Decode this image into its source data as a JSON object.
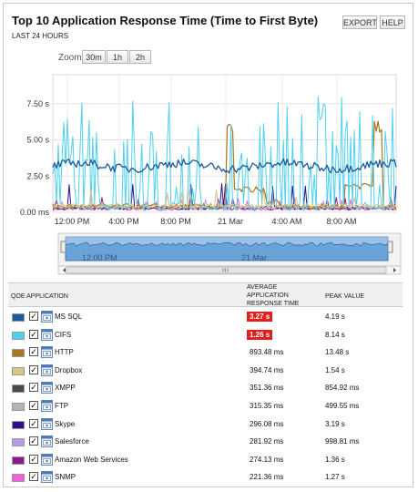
{
  "header": {
    "title": "Top 10 Application Response Time (Time to First Byte)",
    "subtitle": "LAST 24 HOURS",
    "export_label": "EXPORT",
    "help_label": "HELP"
  },
  "zoom": {
    "label": "Zoom",
    "options": [
      "30m",
      "1h",
      "2h"
    ]
  },
  "chart_data": {
    "type": "line",
    "y_ticks": [
      "7.50 s",
      "5.00 s",
      "2.50 s",
      "0.00 ms"
    ],
    "y_values": [
      7.5,
      5.0,
      2.5,
      0
    ],
    "ylim": [
      0,
      9.5
    ],
    "x_ticks": [
      "12:00 PM",
      "4:00 PM",
      "8:00 PM",
      "21 Mar",
      "4:00 AM",
      "8:00 AM"
    ],
    "grid": true,
    "series": [
      {
        "name": "MS SQL",
        "color": "#1a5a9c",
        "avg": 3.27,
        "peak": 4.19
      },
      {
        "name": "CIFS",
        "color": "#4fd0ee",
        "avg": 1.26,
        "peak": 8.14
      },
      {
        "name": "HTTP",
        "color": "#a8761e",
        "avg": 0.89348,
        "peak": 13.48
      },
      {
        "name": "Dropbox",
        "color": "#d9c48a",
        "avg": 0.39474,
        "peak": 1.54
      },
      {
        "name": "XMPP",
        "color": "#4a4a4a",
        "avg": 0.35136,
        "peak": 0.85492
      },
      {
        "name": "FTP",
        "color": "#b5b5b5",
        "avg": 0.31535,
        "peak": 0.49955
      },
      {
        "name": "Skype",
        "color": "#2d0f8c",
        "avg": 0.29608,
        "peak": 3.19
      },
      {
        "name": "Salesforce",
        "color": "#b59be6",
        "avg": 0.28192,
        "peak": 0.99881
      },
      {
        "name": "Amazon Web Services",
        "color": "#8a1a8c",
        "avg": 0.27413,
        "peak": 1.36
      },
      {
        "name": "SNMP",
        "color": "#ef5fd8",
        "avg": 0.22136,
        "peak": 1.27
      }
    ]
  },
  "navigator": {
    "labels": [
      "12:00 PM",
      "21 Mar"
    ]
  },
  "table": {
    "headers": {
      "app": "QOE APPLICATION",
      "avg_line1": "AVERAGE",
      "avg_line2": "APPLICATION",
      "avg_line3": "RESPONSE TIME",
      "peak": "PEAK VALUE"
    },
    "rows": [
      {
        "name": "MS SQL",
        "color": "#1a5a9c",
        "avg": "3.27 s",
        "peak": "4.19 s",
        "alert": true
      },
      {
        "name": "CIFS",
        "color": "#4fd0ee",
        "avg": "1.26 s",
        "peak": "8.14 s",
        "alert": true
      },
      {
        "name": "HTTP",
        "color": "#a8761e",
        "avg": "893.48 ms",
        "peak": "13.48 s",
        "alert": false
      },
      {
        "name": "Dropbox",
        "color": "#d9c48a",
        "avg": "394.74 ms",
        "peak": "1.54 s",
        "alert": false
      },
      {
        "name": "XMPP",
        "color": "#4a4a4a",
        "avg": "351.36 ms",
        "peak": "854.92 ms",
        "alert": false
      },
      {
        "name": "FTP",
        "color": "#b5b5b5",
        "avg": "315.35 ms",
        "peak": "499.55 ms",
        "alert": false
      },
      {
        "name": "Skype",
        "color": "#2d0f8c",
        "avg": "296.08 ms",
        "peak": "3.19 s",
        "alert": false
      },
      {
        "name": "Salesforce",
        "color": "#b59be6",
        "avg": "281.92 ms",
        "peak": "998.81 ms",
        "alert": false
      },
      {
        "name": "Amazon Web Services",
        "color": "#8a1a8c",
        "avg": "274.13 ms",
        "peak": "1.36 s",
        "alert": false
      },
      {
        "name": "SNMP",
        "color": "#ef5fd8",
        "avg": "221.36 ms",
        "peak": "1.27 s",
        "alert": false
      }
    ]
  }
}
